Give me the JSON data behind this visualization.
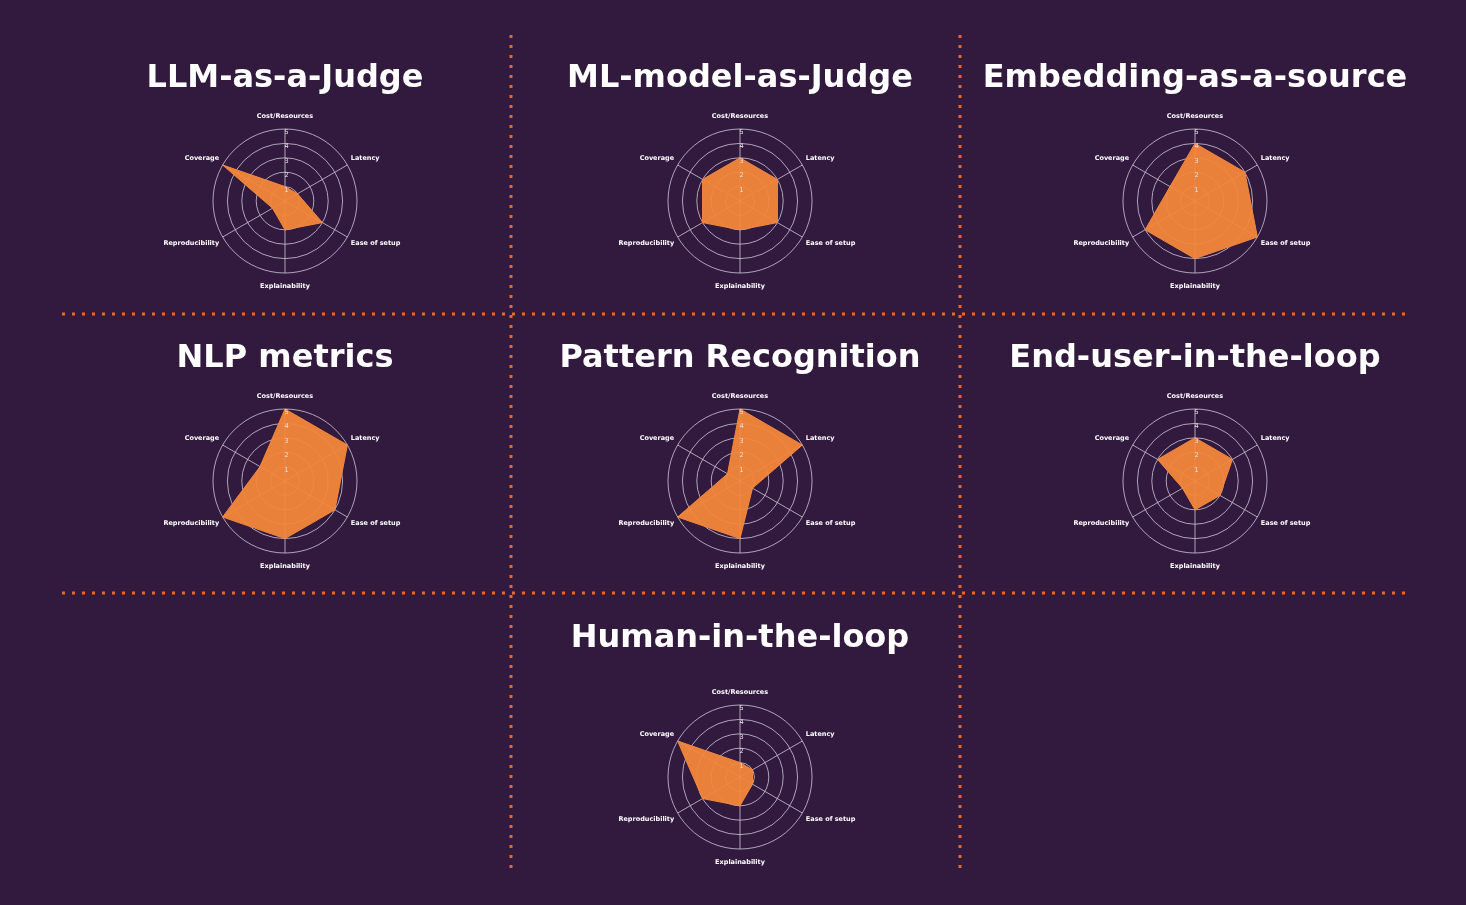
{
  "chart_data": [
    {
      "type": "radar",
      "title": "LLM-as-a-Judge",
      "categories": [
        "Cost/Resources",
        "Latency",
        "Ease of setup",
        "Explainability",
        "Reproducibility",
        "Coverage"
      ],
      "ylim": [
        0,
        5
      ],
      "yticks": [
        1,
        2,
        3,
        4,
        5
      ],
      "grid": true,
      "series": [
        {
          "color": "#f4873b",
          "values": [
            1,
            1,
            3,
            2,
            1,
            5
          ]
        }
      ]
    },
    {
      "type": "radar",
      "title": "ML-model-as-Judge",
      "categories": [
        "Cost/Resources",
        "Latency",
        "Ease of setup",
        "Explainability",
        "Reproducibility",
        "Coverage"
      ],
      "ylim": [
        0,
        5
      ],
      "yticks": [
        1,
        2,
        3,
        4,
        5
      ],
      "grid": true,
      "series": [
        {
          "color": "#f4873b",
          "values": [
            3,
            3,
            3,
            2,
            3,
            3
          ]
        }
      ]
    },
    {
      "type": "radar",
      "title": "Embedding-as-a-source",
      "categories": [
        "Cost/Resources",
        "Latency",
        "Ease of setup",
        "Explainability",
        "Reproducibility",
        "Coverage"
      ],
      "ylim": [
        0,
        5
      ],
      "yticks": [
        1,
        2,
        3,
        4,
        5
      ],
      "grid": true,
      "series": [
        {
          "color": "#f4873b",
          "values": [
            4,
            4,
            5,
            4,
            4,
            2
          ]
        }
      ]
    },
    {
      "type": "radar",
      "title": "NLP metrics",
      "categories": [
        "Cost/Resources",
        "Latency",
        "Ease of setup",
        "Explainability",
        "Reproducibility",
        "Coverage"
      ],
      "ylim": [
        0,
        5
      ],
      "yticks": [
        1,
        2,
        3,
        4,
        5
      ],
      "grid": true,
      "series": [
        {
          "color": "#f4873b",
          "values": [
            5,
            5,
            4,
            4,
            5,
            2
          ]
        }
      ]
    },
    {
      "type": "radar",
      "title": "Pattern Recognition",
      "categories": [
        "Cost/Resources",
        "Latency",
        "Ease of setup",
        "Explainability",
        "Reproducibility",
        "Coverage"
      ],
      "ylim": [
        0,
        5
      ],
      "yticks": [
        1,
        2,
        3,
        4,
        5
      ],
      "grid": true,
      "series": [
        {
          "color": "#f4873b",
          "values": [
            5,
            5,
            1,
            4,
            5,
            1
          ]
        }
      ]
    },
    {
      "type": "radar",
      "title": "End-user-in-the-loop",
      "categories": [
        "Cost/Resources",
        "Latency",
        "Ease of setup",
        "Explainability",
        "Reproducibility",
        "Coverage"
      ],
      "ylim": [
        0,
        5
      ],
      "yticks": [
        1,
        2,
        3,
        4,
        5
      ],
      "grid": true,
      "series": [
        {
          "color": "#f4873b",
          "values": [
            3,
            3,
            2,
            2,
            1,
            3
          ]
        }
      ]
    },
    {
      "type": "radar",
      "title": "Human-in-the-loop",
      "categories": [
        "Cost/Resources",
        "Latency",
        "Ease of setup",
        "Explainability",
        "Reproducibility",
        "Coverage"
      ],
      "ylim": [
        0,
        5
      ],
      "yticks": [
        1,
        2,
        3,
        4,
        5
      ],
      "grid": true,
      "series": [
        {
          "color": "#f4873b",
          "values": [
            1,
            1,
            1,
            2,
            3,
            5
          ]
        }
      ]
    }
  ]
}
